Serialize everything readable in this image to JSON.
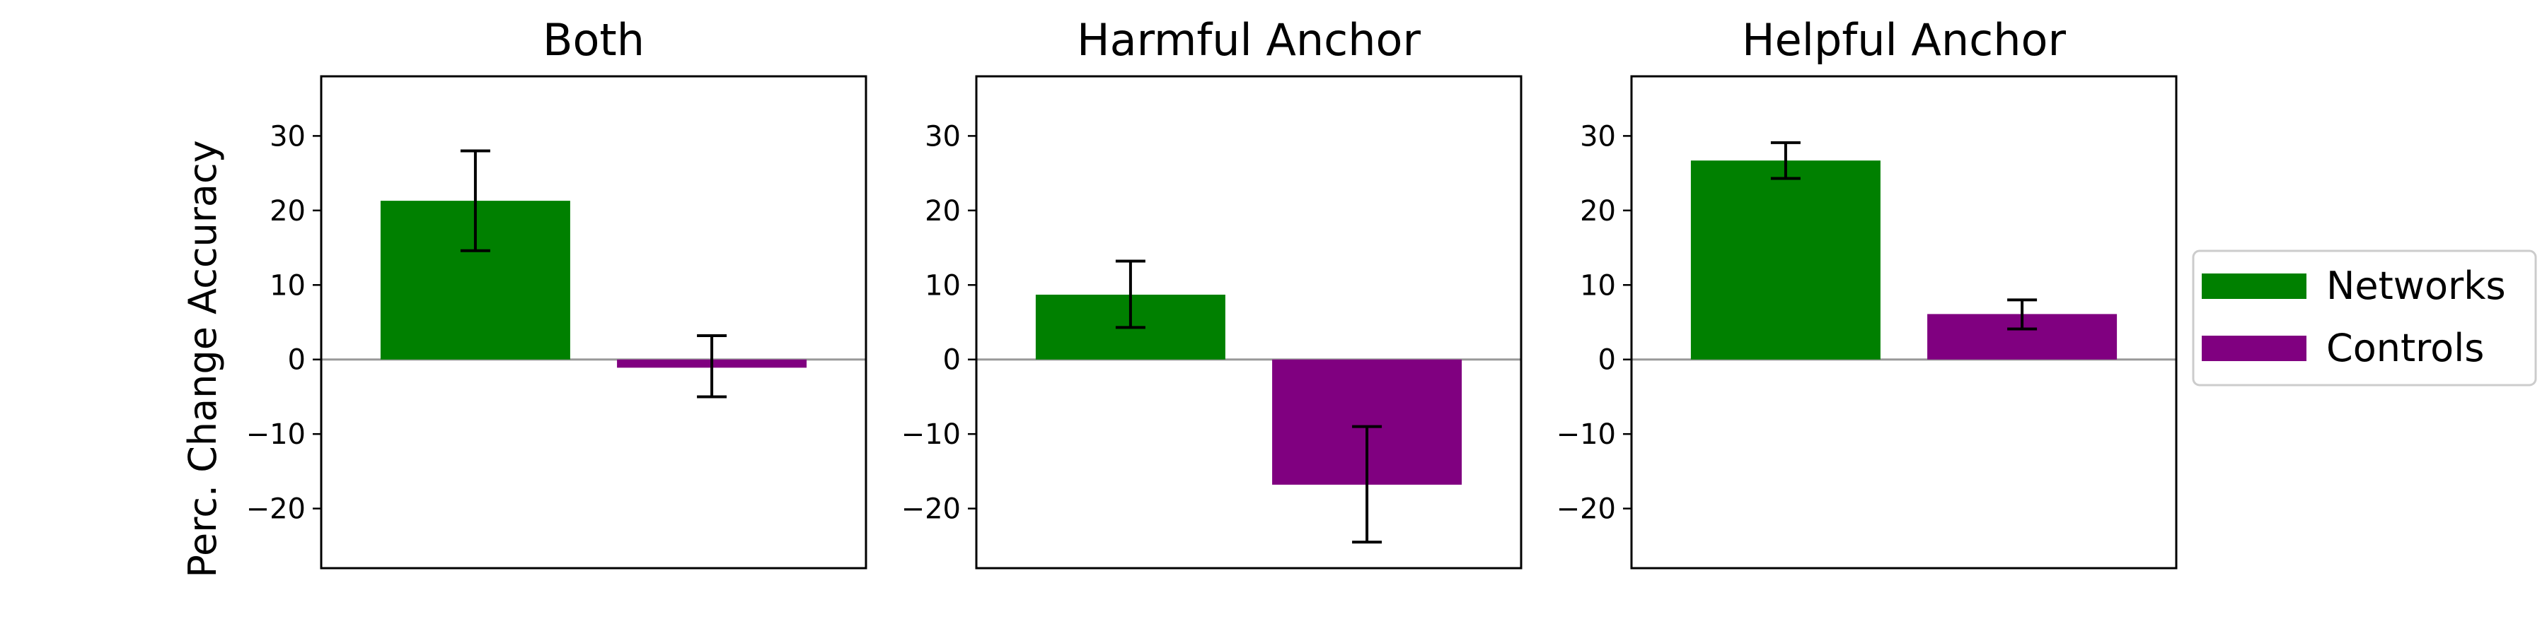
{
  "chart_data": {
    "type": "bar",
    "ylabel": "Perc. Change Accuracy",
    "ylim": [
      -28,
      38
    ],
    "yticks": [
      30,
      20,
      10,
      0,
      -10,
      -20
    ],
    "ytick_labels": [
      "30",
      "20",
      "10",
      "0",
      "−10",
      "−20"
    ],
    "legend": {
      "placement": "right",
      "entries": [
        {
          "name": "Networks",
          "color": "#008000"
        },
        {
          "name": "Controls",
          "color": "#800080"
        }
      ]
    },
    "panels": [
      {
        "title": "Both",
        "bars": [
          {
            "series": "Networks",
            "value": 21.3,
            "err_low": 14.6,
            "err_high": 28.0
          },
          {
            "series": "Controls",
            "value": -1.1,
            "err_low": -5.0,
            "err_high": 3.2
          }
        ]
      },
      {
        "title": "Harmful Anchor",
        "bars": [
          {
            "series": "Networks",
            "value": 8.7,
            "err_low": 4.3,
            "err_high": 13.2
          },
          {
            "series": "Controls",
            "value": -16.8,
            "err_low": -24.5,
            "err_high": -9.0
          }
        ]
      },
      {
        "title": "Helpful Anchor",
        "bars": [
          {
            "series": "Networks",
            "value": 26.7,
            "err_low": 24.3,
            "err_high": 29.1
          },
          {
            "series": "Controls",
            "value": 6.1,
            "err_low": 4.1,
            "err_high": 8.0
          }
        ]
      }
    ]
  }
}
